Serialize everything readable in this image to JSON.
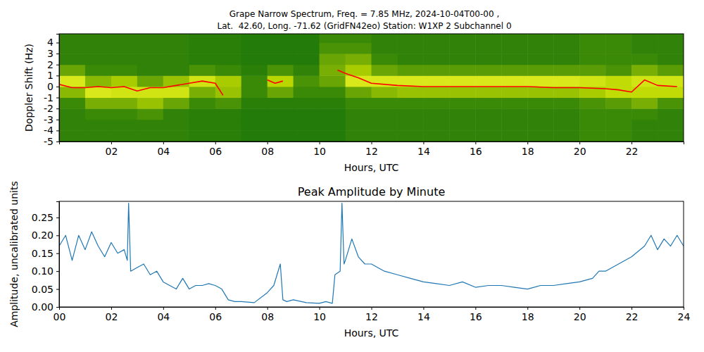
{
  "chart_data": [
    {
      "type": "heatmap",
      "title": [
        "Grape Narrow Spectrum, Freq. = 7.85 MHz, 2024-10-04T00-00 ,",
        "Lat.  42.60, Long. -71.62 (GridFN42eo) Station: W1XP 2 Subchannel 0"
      ],
      "x_label": "Hours, UTC",
      "y_label": "Doppler Shift (Hz)",
      "xlim": [
        0,
        24
      ],
      "xticks": [
        {
          "value": 2,
          "label": "02"
        },
        {
          "value": 4,
          "label": "04"
        },
        {
          "value": 6,
          "label": "06"
        },
        {
          "value": 8,
          "label": "08"
        },
        {
          "value": 10,
          "label": "10"
        },
        {
          "value": 12,
          "label": "12"
        },
        {
          "value": 14,
          "label": "14"
        },
        {
          "value": 16,
          "label": "16"
        },
        {
          "value": 18,
          "label": "18"
        },
        {
          "value": 20,
          "label": "20"
        },
        {
          "value": 22,
          "label": "22"
        }
      ],
      "ylim": [
        -5,
        4.8
      ],
      "yticks": [
        4,
        3,
        2,
        1,
        0,
        -1,
        -2,
        -3,
        -4,
        -5
      ],
      "grid": false,
      "x_edges": [
        0,
        1,
        2,
        3,
        4,
        5,
        6,
        7,
        8,
        9,
        10,
        11,
        12,
        13,
        14,
        15,
        16,
        17,
        18,
        19,
        20,
        21,
        22,
        23,
        24
      ],
      "y_edges": [
        -5,
        -4,
        -3,
        -2,
        -1,
        0,
        1,
        2,
        3,
        4,
        5
      ],
      "zlim": [
        0,
        1
      ],
      "cells": [
        [
          0.12,
          0.12,
          0.12,
          0.15,
          0.4,
          0.75,
          0.3,
          0.12,
          0.12,
          0.12
        ],
        [
          0.12,
          0.12,
          0.15,
          0.35,
          0.75,
          0.4,
          0.15,
          0.12,
          0.12,
          0.12
        ],
        [
          0.12,
          0.12,
          0.15,
          0.35,
          0.7,
          0.5,
          0.15,
          0.12,
          0.12,
          0.12
        ],
        [
          0.12,
          0.12,
          0.2,
          0.45,
          0.7,
          0.3,
          0.12,
          0.12,
          0.12,
          0.12
        ],
        [
          0.12,
          0.12,
          0.12,
          0.3,
          0.7,
          0.45,
          0.12,
          0.12,
          0.12,
          0.12
        ],
        [
          0.1,
          0.1,
          0.1,
          0.15,
          0.35,
          0.7,
          0.2,
          0.1,
          0.1,
          0.1
        ],
        [
          0.1,
          0.1,
          0.1,
          0.2,
          0.45,
          0.5,
          0.15,
          0.1,
          0.1,
          0.1
        ],
        [
          0.08,
          0.08,
          0.08,
          0.1,
          0.15,
          0.15,
          0.1,
          0.08,
          0.08,
          0.08
        ],
        [
          0.08,
          0.08,
          0.08,
          0.1,
          0.3,
          0.55,
          0.2,
          0.08,
          0.08,
          0.08
        ],
        [
          0.08,
          0.08,
          0.08,
          0.1,
          0.15,
          0.2,
          0.12,
          0.08,
          0.08,
          0.08
        ],
        [
          0.08,
          0.08,
          0.08,
          0.1,
          0.15,
          0.3,
          0.35,
          0.3,
          0.2,
          0.15
        ],
        [
          0.12,
          0.12,
          0.12,
          0.15,
          0.3,
          0.75,
          0.5,
          0.35,
          0.2,
          0.15
        ],
        [
          0.12,
          0.12,
          0.12,
          0.15,
          0.4,
          0.75,
          0.3,
          0.15,
          0.12,
          0.12
        ],
        [
          0.12,
          0.12,
          0.12,
          0.15,
          0.45,
          0.75,
          0.25,
          0.12,
          0.12,
          0.12
        ],
        [
          0.12,
          0.12,
          0.12,
          0.15,
          0.45,
          0.75,
          0.25,
          0.12,
          0.12,
          0.12
        ],
        [
          0.12,
          0.12,
          0.12,
          0.15,
          0.45,
          0.75,
          0.25,
          0.12,
          0.12,
          0.12
        ],
        [
          0.12,
          0.12,
          0.12,
          0.15,
          0.45,
          0.75,
          0.25,
          0.12,
          0.12,
          0.12
        ],
        [
          0.12,
          0.12,
          0.12,
          0.15,
          0.45,
          0.75,
          0.25,
          0.12,
          0.12,
          0.12
        ],
        [
          0.12,
          0.12,
          0.12,
          0.15,
          0.45,
          0.75,
          0.25,
          0.12,
          0.12,
          0.12
        ],
        [
          0.12,
          0.12,
          0.12,
          0.15,
          0.45,
          0.75,
          0.25,
          0.12,
          0.12,
          0.12
        ],
        [
          0.15,
          0.15,
          0.15,
          0.2,
          0.5,
          0.7,
          0.25,
          0.15,
          0.15,
          0.15
        ],
        [
          0.15,
          0.15,
          0.15,
          0.25,
          0.6,
          0.6,
          0.2,
          0.15,
          0.15,
          0.15
        ],
        [
          0.12,
          0.12,
          0.15,
          0.35,
          0.6,
          0.7,
          0.35,
          0.15,
          0.12,
          0.12
        ],
        [
          0.12,
          0.12,
          0.12,
          0.2,
          0.6,
          0.7,
          0.25,
          0.12,
          0.12,
          0.12
        ]
      ],
      "series": [
        {
          "type": "line",
          "color": "#ff0000",
          "x": [
            0,
            0.5,
            1,
            1.5,
            2,
            2.5,
            3,
            3.5,
            4,
            4.5,
            5,
            5.5,
            6,
            6.3,
            7,
            8,
            8.3,
            8.6,
            9,
            10.7,
            11,
            11.5,
            12,
            13,
            14,
            15,
            16,
            17,
            18,
            19,
            20,
            21,
            21.5,
            22,
            22.5,
            23,
            23.75
          ],
          "values": [
            0.2,
            -0.1,
            -0.1,
            0,
            -0.1,
            0,
            -0.4,
            -0.1,
            -0.1,
            0.1,
            0.3,
            0.5,
            0.3,
            -0.8,
            null,
            0.6,
            0.3,
            0.5,
            null,
            1.5,
            1.2,
            0.8,
            0.3,
            0.1,
            0,
            0,
            0,
            0,
            0,
            -0.1,
            -0.1,
            -0.2,
            -0.3,
            -0.5,
            0.6,
            0.1,
            0
          ]
        }
      ]
    },
    {
      "type": "line",
      "title": "Peak Amplitude by Minute",
      "x_label": "Hours, UTC",
      "y_label": "Amplitude, uncalibrated units",
      "xlim": [
        0,
        24
      ],
      "xticks": [
        {
          "value": 0,
          "label": "00"
        },
        {
          "value": 2,
          "label": "02"
        },
        {
          "value": 4,
          "label": "04"
        },
        {
          "value": 6,
          "label": "06"
        },
        {
          "value": 8,
          "label": "08"
        },
        {
          "value": 10,
          "label": "10"
        },
        {
          "value": 12,
          "label": "12"
        },
        {
          "value": 14,
          "label": "14"
        },
        {
          "value": 16,
          "label": "16"
        },
        {
          "value": 18,
          "label": "18"
        },
        {
          "value": 20,
          "label": "20"
        },
        {
          "value": 22,
          "label": "22"
        },
        {
          "value": 24,
          "label": "24"
        }
      ],
      "ylim": [
        0,
        0.295
      ],
      "yticks": [
        {
          "value": 0,
          "label": "0.00"
        },
        {
          "value": 0.05,
          "label": "0.05"
        },
        {
          "value": 0.1,
          "label": "0.10"
        },
        {
          "value": 0.15,
          "label": "0.15"
        },
        {
          "value": 0.2,
          "label": "0.20"
        },
        {
          "value": 0.25,
          "label": "0.25"
        }
      ],
      "grid": false,
      "series": [
        {
          "color": "#1f77b4",
          "x": [
            0,
            0.25,
            0.5,
            0.75,
            1,
            1.25,
            1.5,
            1.75,
            2,
            2.25,
            2.5,
            2.62,
            2.67,
            2.75,
            3,
            3.25,
            3.5,
            3.75,
            4,
            4.25,
            4.5,
            4.75,
            5,
            5.25,
            5.5,
            5.75,
            6,
            6.25,
            6.5,
            6.75,
            7,
            7.5,
            8,
            8.25,
            8.5,
            8.6,
            8.75,
            9,
            9.5,
            10,
            10.25,
            10.5,
            10.6,
            10.8,
            10.87,
            10.95,
            11,
            11.25,
            11.5,
            11.75,
            12,
            12.5,
            13,
            13.5,
            14,
            14.5,
            15,
            15.5,
            16,
            16.5,
            17,
            17.5,
            18,
            18.5,
            19,
            19.5,
            20,
            20.5,
            20.75,
            21,
            21.5,
            22,
            22.5,
            22.75,
            23,
            23.25,
            23.5,
            23.75,
            24
          ],
          "values": [
            0.17,
            0.2,
            0.13,
            0.2,
            0.16,
            0.21,
            0.17,
            0.14,
            0.18,
            0.15,
            0.16,
            0.13,
            0.29,
            0.1,
            0.11,
            0.12,
            0.09,
            0.1,
            0.07,
            0.06,
            0.05,
            0.08,
            0.05,
            0.06,
            0.06,
            0.065,
            0.06,
            0.05,
            0.02,
            0.015,
            0.015,
            0.012,
            0.04,
            0.06,
            0.12,
            0.02,
            0.015,
            0.02,
            0.012,
            0.01,
            0.015,
            0.01,
            0.09,
            0.1,
            0.29,
            0.12,
            0.13,
            0.19,
            0.14,
            0.12,
            0.12,
            0.1,
            0.09,
            0.08,
            0.07,
            0.065,
            0.06,
            0.07,
            0.055,
            0.06,
            0.06,
            0.055,
            0.05,
            0.06,
            0.06,
            0.065,
            0.07,
            0.08,
            0.1,
            0.1,
            0.12,
            0.14,
            0.17,
            0.2,
            0.16,
            0.19,
            0.17,
            0.2,
            0.17
          ]
        }
      ]
    }
  ]
}
